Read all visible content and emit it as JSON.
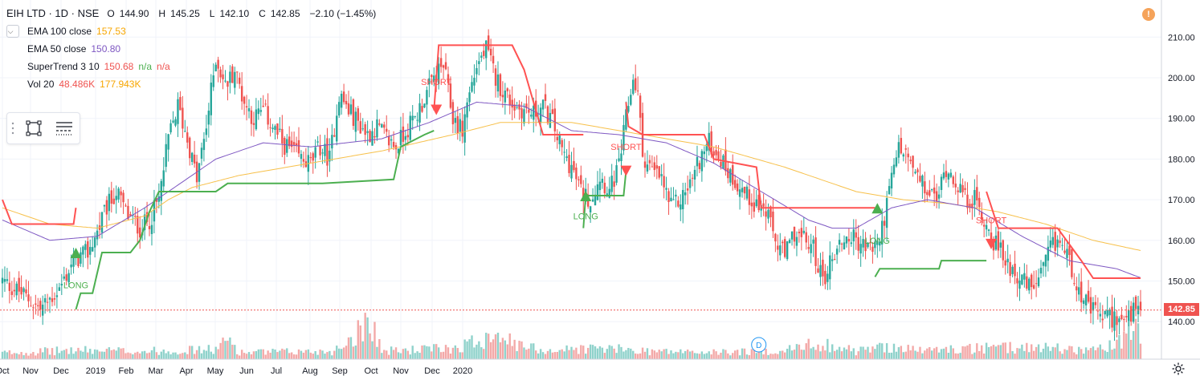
{
  "header": {
    "symbol": "EIH LTD · 1D · NSE",
    "ohlc": [
      {
        "label": "O",
        "value": "144.90"
      },
      {
        "label": "H",
        "value": "145.25"
      },
      {
        "label": "L",
        "value": "142.10"
      },
      {
        "label": "C",
        "value": "142.85"
      }
    ],
    "change": "−2.10 (−1.45%)"
  },
  "indicators": {
    "ema100": {
      "name": "EMA 100 close",
      "value": "157.53"
    },
    "ema50": {
      "name": "EMA 50 close",
      "value": "150.80"
    },
    "supertrend": {
      "name": "SuperTrend 3 10",
      "value": "150.68",
      "na1": "n/a",
      "na2": "n/a"
    },
    "vol": {
      "name": "Vol 20",
      "value": "48.486K",
      "value2": "177.943K"
    }
  },
  "price_badge": "142.85",
  "warning_icon_text": "!",
  "event_marker": "D",
  "colors": {
    "up": "#26a69a",
    "down": "#ef5350",
    "ema100": "#f7c04a",
    "ema50": "#7e57c2",
    "supertrend_up": "#4caf50",
    "supertrend_down": "#ff5252",
    "vol_up": "#8fd2cb",
    "vol_down": "#f3a9a8",
    "text": "#131722",
    "grid": "#f0f3fa"
  },
  "chart_data": {
    "type": "candlestick",
    "y_axis": {
      "ticks": [
        140,
        150,
        160,
        170,
        180,
        190,
        200,
        210
      ],
      "tick_labels": [
        "140.00",
        "150.00",
        "160.00",
        "170.00",
        "180.00",
        "190.00",
        "200.00",
        "210.00"
      ]
    },
    "x_axis": {
      "ticks": [
        "Oct",
        "Nov",
        "Dec",
        "2019",
        "Feb",
        "Mar",
        "Apr",
        "May",
        "Jun",
        "Jul",
        "Aug",
        "Sep",
        "Oct",
        "Nov",
        "Dec",
        "2020"
      ]
    },
    "last_price": 142.85,
    "grid": true,
    "close_anchors": [
      [
        0,
        150
      ],
      [
        8,
        147
      ],
      [
        16,
        143
      ],
      [
        24,
        148
      ],
      [
        30,
        155
      ],
      [
        36,
        157
      ],
      [
        40,
        162
      ],
      [
        44,
        168
      ],
      [
        48,
        172
      ],
      [
        53,
        166
      ],
      [
        58,
        163
      ],
      [
        62,
        165
      ],
      [
        66,
        170
      ],
      [
        70,
        185
      ],
      [
        74,
        193
      ],
      [
        78,
        185
      ],
      [
        82,
        175
      ],
      [
        86,
        188
      ],
      [
        90,
        205
      ],
      [
        94,
        198
      ],
      [
        98,
        202
      ],
      [
        102,
        194
      ],
      [
        106,
        190
      ],
      [
        110,
        192
      ],
      [
        114,
        188
      ],
      [
        118,
        184
      ],
      [
        122,
        182
      ],
      [
        126,
        180
      ],
      [
        130,
        179
      ],
      [
        134,
        183
      ],
      [
        138,
        180
      ],
      [
        142,
        196
      ],
      [
        146,
        192
      ],
      [
        150,
        189
      ],
      [
        154,
        186
      ],
      [
        158,
        188
      ],
      [
        162,
        185
      ],
      [
        166,
        183
      ],
      [
        170,
        187
      ],
      [
        174,
        190
      ],
      [
        178,
        195
      ],
      [
        182,
        200
      ],
      [
        186,
        203
      ],
      [
        190,
        190
      ],
      [
        194,
        187
      ],
      [
        196,
        194
      ],
      [
        200,
        203
      ],
      [
        204,
        207
      ],
      [
        208,
        200
      ],
      [
        212,
        196
      ],
      [
        216,
        193
      ],
      [
        220,
        192
      ],
      [
        224,
        191
      ],
      [
        228,
        193
      ],
      [
        232,
        189
      ],
      [
        236,
        182
      ],
      [
        240,
        178
      ],
      [
        244,
        172
      ],
      [
        248,
        170
      ],
      [
        252,
        176
      ],
      [
        256,
        172
      ],
      [
        260,
        178
      ],
      [
        263,
        190
      ],
      [
        266,
        200
      ],
      [
        268,
        196
      ],
      [
        270,
        181
      ],
      [
        274,
        177
      ],
      [
        278,
        175
      ],
      [
        282,
        168
      ],
      [
        286,
        170
      ],
      [
        290,
        174
      ],
      [
        294,
        180
      ],
      [
        298,
        184
      ],
      [
        302,
        181
      ],
      [
        306,
        177
      ],
      [
        310,
        174
      ],
      [
        314,
        171
      ],
      [
        318,
        169
      ],
      [
        322,
        167
      ],
      [
        326,
        160
      ],
      [
        330,
        156
      ],
      [
        334,
        162
      ],
      [
        338,
        160
      ],
      [
        342,
        158
      ],
      [
        346,
        150
      ],
      [
        350,
        156
      ],
      [
        354,
        160
      ],
      [
        358,
        161
      ],
      [
        362,
        159
      ],
      [
        366,
        158
      ],
      [
        370,
        160
      ],
      [
        374,
        172
      ],
      [
        378,
        183
      ],
      [
        382,
        180
      ],
      [
        386,
        175
      ],
      [
        390,
        172
      ],
      [
        394,
        170
      ],
      [
        398,
        178
      ],
      [
        402,
        175
      ],
      [
        406,
        170
      ],
      [
        410,
        170
      ],
      [
        414,
        165
      ],
      [
        418,
        160
      ],
      [
        422,
        156
      ],
      [
        426,
        153
      ],
      [
        430,
        150
      ],
      [
        434,
        148
      ],
      [
        438,
        151
      ],
      [
        442,
        158
      ],
      [
        446,
        160
      ],
      [
        450,
        155
      ],
      [
        454,
        148
      ],
      [
        458,
        143
      ],
      [
        462,
        142
      ],
      [
        466,
        141
      ],
      [
        470,
        141
      ],
      [
        474,
        140
      ],
      [
        478,
        143
      ],
      [
        480,
        142.85
      ]
    ],
    "volume_anchors": [
      [
        0,
        14
      ],
      [
        30,
        20
      ],
      [
        60,
        18
      ],
      [
        90,
        22
      ],
      [
        96,
        45
      ],
      [
        100,
        15
      ],
      [
        140,
        18
      ],
      [
        150,
        62
      ],
      [
        155,
        100
      ],
      [
        160,
        18
      ],
      [
        190,
        25
      ],
      [
        200,
        40
      ],
      [
        210,
        70
      ],
      [
        215,
        32
      ],
      [
        230,
        20
      ],
      [
        250,
        25
      ],
      [
        275,
        18
      ],
      [
        300,
        15
      ],
      [
        330,
        20
      ],
      [
        345,
        36
      ],
      [
        360,
        18
      ],
      [
        375,
        30
      ],
      [
        385,
        20
      ],
      [
        400,
        22
      ],
      [
        420,
        25
      ],
      [
        440,
        28
      ],
      [
        455,
        20
      ],
      [
        470,
        30
      ],
      [
        478,
        80
      ],
      [
        480,
        35
      ]
    ],
    "ema100_anchors": [
      [
        0,
        168
      ],
      [
        20,
        164
      ],
      [
        40,
        163
      ],
      [
        60,
        166
      ],
      [
        70,
        170
      ],
      [
        80,
        173
      ],
      [
        100,
        176
      ],
      [
        130,
        179
      ],
      [
        160,
        182
      ],
      [
        190,
        186
      ],
      [
        210,
        189
      ],
      [
        240,
        189
      ],
      [
        270,
        186
      ],
      [
        300,
        183
      ],
      [
        330,
        178
      ],
      [
        360,
        172
      ],
      [
        380,
        170
      ],
      [
        400,
        169
      ],
      [
        420,
        167
      ],
      [
        440,
        164
      ],
      [
        460,
        160
      ],
      [
        480,
        157.5
      ]
    ],
    "ema50_anchors": [
      [
        0,
        165
      ],
      [
        20,
        160
      ],
      [
        40,
        161
      ],
      [
        60,
        168
      ],
      [
        75,
        174
      ],
      [
        90,
        180
      ],
      [
        110,
        184
      ],
      [
        130,
        183
      ],
      [
        160,
        185
      ],
      [
        180,
        189
      ],
      [
        200,
        194
      ],
      [
        220,
        193
      ],
      [
        240,
        187
      ],
      [
        260,
        186
      ],
      [
        280,
        184
      ],
      [
        300,
        179
      ],
      [
        320,
        172
      ],
      [
        340,
        165
      ],
      [
        350,
        163
      ],
      [
        360,
        163
      ],
      [
        375,
        168
      ],
      [
        390,
        170
      ],
      [
        410,
        168
      ],
      [
        430,
        161
      ],
      [
        450,
        155
      ],
      [
        470,
        153
      ],
      [
        480,
        150.8
      ]
    ],
    "supertrend_segments": [
      {
        "dir": "down",
        "points": [
          [
            0,
            170
          ],
          [
            4,
            164
          ],
          [
            12,
            164
          ],
          [
            30,
            164
          ],
          [
            31,
            168
          ]
        ]
      },
      {
        "dir": "up",
        "points": [
          [
            31,
            143
          ],
          [
            33,
            147
          ],
          [
            38,
            147
          ],
          [
            42,
            157
          ],
          [
            54,
            157
          ],
          [
            58,
            160
          ],
          [
            62,
            167
          ],
          [
            66,
            172
          ],
          [
            90,
            172
          ],
          [
            95,
            174
          ],
          [
            135,
            174
          ],
          [
            165,
            175
          ],
          [
            168,
            183
          ],
          [
            178,
            186
          ],
          [
            182,
            187
          ]
        ]
      },
      {
        "dir": "down",
        "points": [
          [
            182,
            192
          ],
          [
            184,
            208
          ],
          [
            215,
            208
          ],
          [
            220,
            202
          ],
          [
            225,
            192
          ],
          [
            228,
            186
          ],
          [
            242,
            186
          ],
          [
            245,
            186
          ]
        ]
      },
      {
        "dir": "up",
        "points": [
          [
            245,
            163
          ],
          [
            246,
            171
          ],
          [
            262,
            171
          ],
          [
            263,
            177
          ]
        ]
      },
      {
        "dir": "down",
        "points": [
          [
            263,
            194
          ],
          [
            264,
            188
          ],
          [
            270,
            186
          ],
          [
            296,
            186
          ],
          [
            300,
            180
          ],
          [
            318,
            178
          ],
          [
            320,
            168
          ],
          [
            368,
            168
          ]
        ]
      },
      {
        "dir": "up",
        "points": [
          [
            368,
            151
          ],
          [
            370,
            153
          ],
          [
            395,
            153
          ],
          [
            396,
            155
          ],
          [
            415,
            155
          ]
        ]
      },
      {
        "dir": "down",
        "points": [
          [
            415,
            172
          ],
          [
            420,
            163
          ],
          [
            445,
            163
          ],
          [
            455,
            155
          ],
          [
            460,
            150.7
          ],
          [
            480,
            150.7
          ]
        ]
      }
    ],
    "signals": [
      {
        "label": "LONG",
        "type": "long",
        "bar": 31,
        "price": 157,
        "label_price": 149
      },
      {
        "label": "SHORT",
        "type": "short",
        "bar": 183,
        "price": 192,
        "label_price": 199
      },
      {
        "label": "LONG",
        "type": "long",
        "bar": 246,
        "price": 171,
        "label_price": 166
      },
      {
        "label": "SHORT",
        "type": "short",
        "bar": 263,
        "price": 177,
        "label_price": 183
      },
      {
        "label": "LONG",
        "type": "long",
        "bar": 369,
        "price": 168,
        "label_price": 160
      },
      {
        "label": "SHORT",
        "type": "short",
        "bar": 417,
        "price": 159,
        "label_price": 165
      }
    ]
  }
}
